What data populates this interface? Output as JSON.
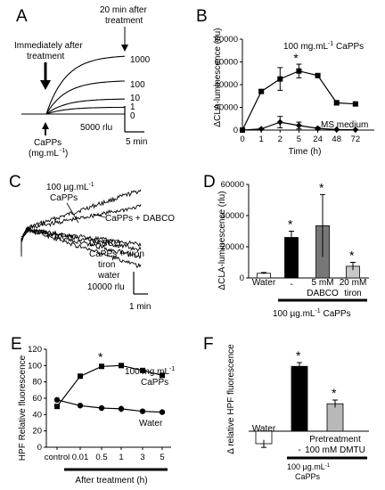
{
  "panel_labels": {
    "a": "A",
    "b": "B",
    "c": "C",
    "d": "D",
    "e": "E",
    "f": "F"
  },
  "chart_data": [
    {
      "panel": "A",
      "type": "line",
      "annotations": [
        "Immediately after treatment",
        "20 min after treatment",
        "CaPPs",
        "(mg.mL-1)"
      ],
      "scale_labels": {
        "amplitude": "5000 rlu",
        "time": "5 min"
      },
      "series": [
        {
          "name": "1000",
          "shape": "rising-saturating",
          "relative_level": 0.95
        },
        {
          "name": "100",
          "shape": "rising-saturating",
          "relative_level": 0.62
        },
        {
          "name": "10",
          "shape": "rising-saturating",
          "relative_level": 0.38
        },
        {
          "name": "1",
          "shape": "rising-saturating",
          "relative_level": 0.27
        },
        {
          "name": "0",
          "shape": "flat",
          "relative_level": 0.18
        }
      ]
    },
    {
      "panel": "B",
      "type": "line",
      "ylabel": "ΔCLA-luminescence (rlu)",
      "xlabel": "Time (h)",
      "categories": [
        "0",
        "1",
        "2",
        "5",
        "24",
        "48",
        "72"
      ],
      "ylim": [
        0,
        80000
      ],
      "yticks": [
        "0",
        "20000",
        "40000",
        "60000",
        "80000"
      ],
      "series": [
        {
          "name": "100 mg.mL-1 CaPPs",
          "marker": "square",
          "values": [
            0,
            34000,
            45000,
            52000,
            48000,
            24000,
            23000
          ],
          "errors": [
            0,
            1500,
            10000,
            6000,
            1500,
            2000,
            1500
          ]
        },
        {
          "name": "MS medium",
          "marker": "diamond",
          "values": [
            0,
            1000,
            7000,
            4000,
            1500,
            500,
            300
          ],
          "errors": [
            0,
            500,
            5000,
            3000,
            1000,
            300,
            300
          ]
        }
      ],
      "significance": [
        {
          "category": "5",
          "label": "*"
        }
      ]
    },
    {
      "panel": "C",
      "type": "line",
      "scale_labels": {
        "amplitude": "10000 rlu",
        "time": "1 min"
      },
      "series": [
        {
          "name": "100 µg.mL-1 CaPPs",
          "relative_level": 0.92
        },
        {
          "name": "CaPPs + DABCO",
          "relative_level": 0.75
        },
        {
          "name": "DABCO",
          "relative_level": 0.35
        },
        {
          "name": "CaPPs + tiron",
          "relative_level": 0.3
        },
        {
          "name": "tiron",
          "relative_level": 0.22
        },
        {
          "name": "water",
          "relative_level": 0.12
        }
      ]
    },
    {
      "panel": "D",
      "type": "bar",
      "ylabel": "ΔCLA-luminescence (rlu)",
      "ylim": [
        0,
        60000
      ],
      "yticks": [
        "0",
        "20000",
        "40000",
        "60000"
      ],
      "categories": [
        "Water",
        "-",
        "5 mM DABCO",
        "20 mM tiron"
      ],
      "values": [
        3000,
        26000,
        33500,
        7500
      ],
      "errors": [
        500,
        4000,
        20000,
        2500
      ],
      "colors": [
        "#ffffff",
        "#000000",
        "#777777",
        "#c8c8c8"
      ],
      "significance": [
        "",
        "*",
        "*",
        "*"
      ],
      "group_label": "100 µg.mL-1 CaPPs"
    },
    {
      "panel": "E",
      "type": "line",
      "ylabel": "HPF Relative fluorescence",
      "xlabel": "After treatment (h)",
      "categories": [
        "control",
        "0.01",
        "0.5",
        "1",
        "3",
        "5"
      ],
      "ylim": [
        0,
        120
      ],
      "yticks": [
        "0",
        "20",
        "40",
        "60",
        "80",
        "100",
        "120"
      ],
      "series": [
        {
          "name": "100 mg.mL-1 CaPPs",
          "marker": "square",
          "values": [
            50,
            87,
            99,
            100,
            94,
            88
          ],
          "errors": [
            3,
            2,
            2,
            2,
            2,
            2
          ]
        },
        {
          "name": "Water",
          "marker": "circle",
          "values": [
            58,
            51,
            48,
            47,
            44,
            43
          ],
          "errors": [
            3,
            2,
            3,
            4,
            2,
            2
          ]
        }
      ],
      "significance": [
        {
          "category": "0.5",
          "label": "*"
        }
      ]
    },
    {
      "panel": "F",
      "type": "bar",
      "ylabel": "Δ relative HPF fluorescence",
      "ylim": [
        -10,
        30
      ],
      "categories": [
        "Water",
        "-",
        "Pretreatment 100 mM DMTU"
      ],
      "values": [
        -5,
        26,
        11
      ],
      "errors": [
        1.5,
        1.5,
        1.5
      ],
      "colors": [
        "#ffffff",
        "#000000",
        "#b8b8b8"
      ],
      "significance": [
        "",
        "*",
        "*"
      ],
      "group_label": "100 µg.mL-1 CaPPs"
    }
  ]
}
